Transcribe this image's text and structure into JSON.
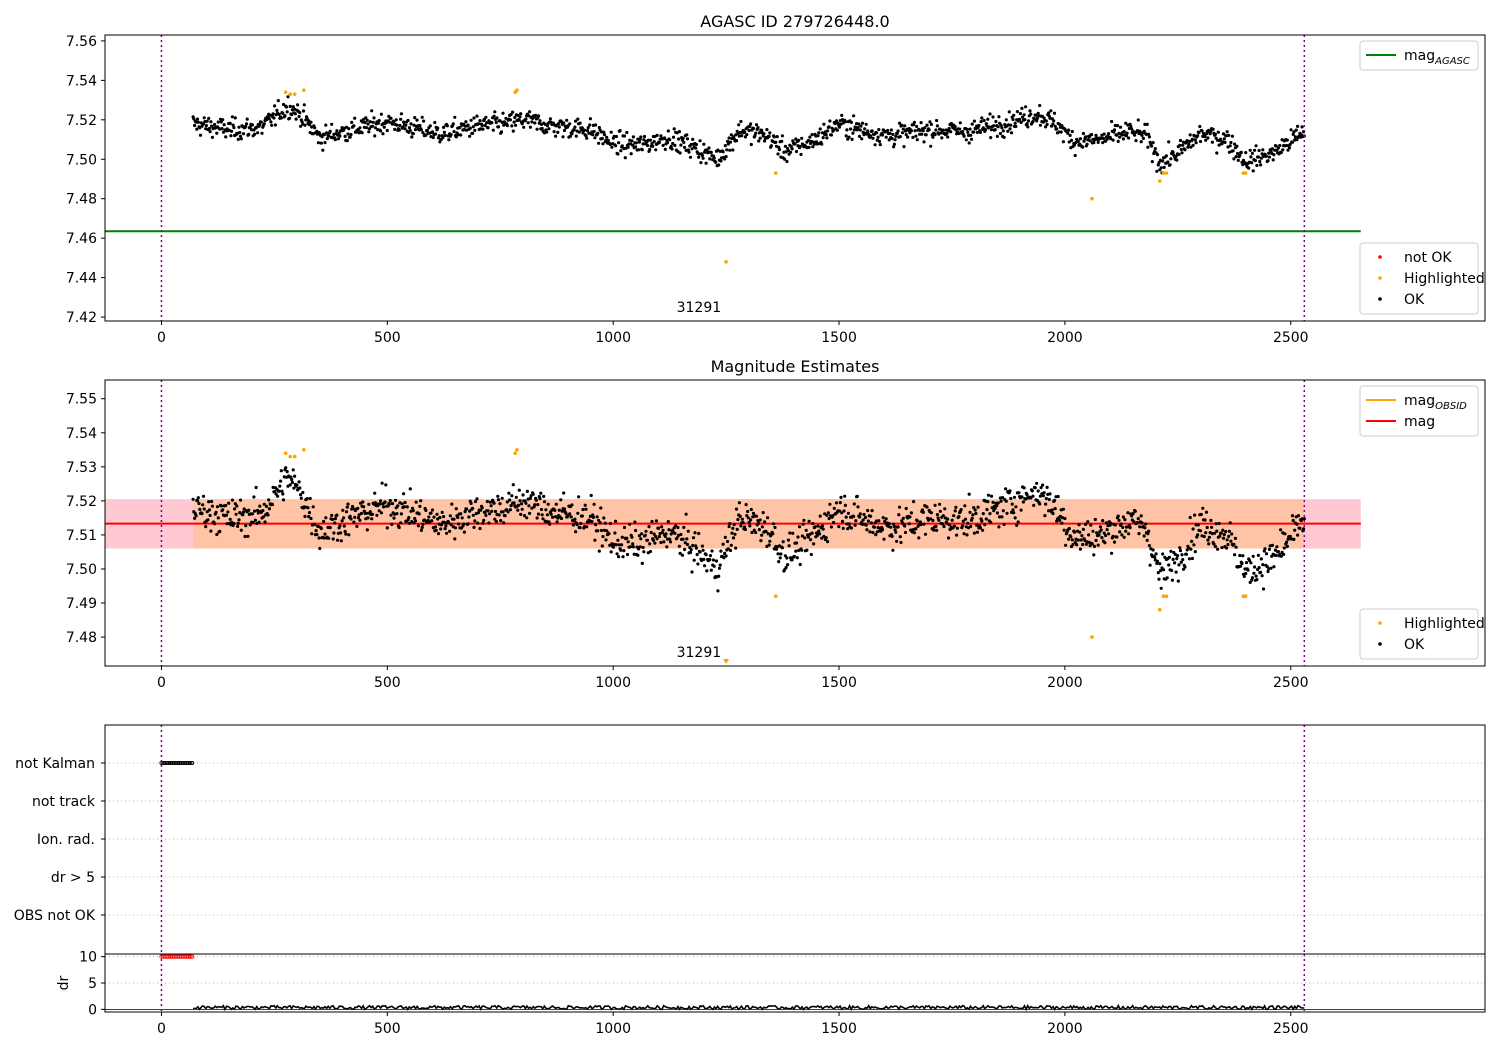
{
  "chart_data": [
    {
      "type": "scatter",
      "title": "AGASC ID 279726448.0",
      "xlabel": "",
      "ylabel": "",
      "xlim": [
        -125,
        2930
      ],
      "ylim": [
        7.418,
        7.563
      ],
      "xticks": [
        0,
        500,
        1000,
        1500,
        2000,
        2500
      ],
      "yticks": [
        7.42,
        7.44,
        7.46,
        7.48,
        7.5,
        7.52,
        7.54,
        7.56
      ],
      "ytick_format": 2,
      "vlines": [
        0,
        2530
      ],
      "obsid_label": {
        "text": "31291",
        "x": 1265
      },
      "hlines": [
        {
          "name": "mag_AGASC",
          "y": 7.4635,
          "x0": -125,
          "x1": 2655,
          "color": "#008000"
        }
      ],
      "legends": [
        {
          "position": "top-right",
          "entries": [
            {
              "label": "mag",
              "sub": "AGASC",
              "kind": "line",
              "color": "#008000"
            }
          ]
        },
        {
          "position": "lower-right",
          "entries": [
            {
              "label": "not OK",
              "kind": "dot",
              "color": "#ff0000"
            },
            {
              "label": "Highlighted",
              "kind": "dot",
              "color": "#ffa500"
            },
            {
              "label": "OK",
              "kind": "dot",
              "color": "#000000"
            }
          ]
        }
      ],
      "series": [
        {
          "name": "OK",
          "color": "#000000",
          "kind": "trend",
          "x_range": [
            70,
            2530
          ],
          "count": 1500,
          "trend": [
            [
              70,
              7.518
            ],
            [
              150,
              7.515
            ],
            [
              220,
              7.516
            ],
            [
              280,
              7.527
            ],
            [
              310,
              7.522
            ],
            [
              350,
              7.511
            ],
            [
              420,
              7.515
            ],
            [
              500,
              7.519
            ],
            [
              560,
              7.516
            ],
            [
              620,
              7.513
            ],
            [
              700,
              7.517
            ],
            [
              760,
              7.518
            ],
            [
              800,
              7.52
            ],
            [
              860,
              7.517
            ],
            [
              950,
              7.515
            ],
            [
              1000,
              7.508
            ],
            [
              1060,
              7.507
            ],
            [
              1120,
              7.511
            ],
            [
              1180,
              7.506
            ],
            [
              1230,
              7.5
            ],
            [
              1280,
              7.515
            ],
            [
              1340,
              7.512
            ],
            [
              1380,
              7.504
            ],
            [
              1440,
              7.509
            ],
            [
              1500,
              7.518
            ],
            [
              1560,
              7.514
            ],
            [
              1620,
              7.512
            ],
            [
              1700,
              7.515
            ],
            [
              1780,
              7.514
            ],
            [
              1860,
              7.518
            ],
            [
              1940,
              7.523
            ],
            [
              1980,
              7.518
            ],
            [
              2020,
              7.509
            ],
            [
              2080,
              7.51
            ],
            [
              2140,
              7.514
            ],
            [
              2180,
              7.512
            ],
            [
              2210,
              7.498
            ],
            [
              2250,
              7.503
            ],
            [
              2300,
              7.513
            ],
            [
              2360,
              7.51
            ],
            [
              2400,
              7.499
            ],
            [
              2460,
              7.503
            ],
            [
              2530,
              7.514
            ]
          ],
          "noise": 0.0045
        },
        {
          "name": "Highlighted",
          "color": "#ffa500",
          "kind": "points",
          "x": [
            275,
            285,
            295,
            315,
            783,
            787,
            1250,
            1360,
            2060,
            2210,
            2218,
            2225,
            2395,
            2400
          ],
          "y": [
            7.534,
            7.533,
            7.533,
            7.535,
            7.534,
            7.535,
            7.448,
            7.493,
            7.48,
            7.489,
            7.493,
            7.493,
            7.493,
            7.493
          ]
        }
      ]
    },
    {
      "type": "scatter",
      "title": "Magnitude Estimates",
      "xlabel": "",
      "ylabel": "",
      "xlim": [
        -125,
        2930
      ],
      "ylim": [
        7.4715,
        7.5555
      ],
      "xticks": [
        0,
        500,
        1000,
        1500,
        2000,
        2500
      ],
      "yticks": [
        7.48,
        7.49,
        7.5,
        7.51,
        7.52,
        7.53,
        7.54,
        7.55
      ],
      "ytick_format": 2,
      "vlines": [
        0,
        2530
      ],
      "obsid_label": {
        "text": "31291",
        "x": 1265
      },
      "marker": {
        "shape": "triangle",
        "x": 1250,
        "color": "#ffa500"
      },
      "bands": [
        {
          "y0": 7.506,
          "y1": 7.5205,
          "x0": -125,
          "x1": 2655,
          "fill": "#ffc0cb"
        },
        {
          "y0": 7.506,
          "y1": 7.5205,
          "x0": 70,
          "x1": 2530,
          "fill": "#ffc39d"
        }
      ],
      "hlines": [
        {
          "name": "mag",
          "y": 7.5133,
          "x0": -125,
          "x1": 2655,
          "color": "#ff0000"
        }
      ],
      "legends": [
        {
          "position": "top-right",
          "entries": [
            {
              "label": "mag",
              "sub": "OBSID",
              "kind": "line",
              "color": "#ffa500"
            },
            {
              "label": "mag",
              "kind": "line",
              "color": "#ff0000"
            }
          ]
        },
        {
          "position": "lower-right",
          "entries": [
            {
              "label": "Highlighted",
              "kind": "dot",
              "color": "#ffa500"
            },
            {
              "label": "OK",
              "kind": "dot",
              "color": "#000000"
            }
          ]
        }
      ],
      "series": [
        {
          "name": "OK",
          "color": "#000000",
          "kind": "trend",
          "x_range": [
            70,
            2530
          ],
          "count": 1500,
          "trend": [
            [
              70,
              7.518
            ],
            [
              150,
              7.515
            ],
            [
              220,
              7.516
            ],
            [
              280,
              7.527
            ],
            [
              310,
              7.522
            ],
            [
              350,
              7.511
            ],
            [
              420,
              7.515
            ],
            [
              500,
              7.519
            ],
            [
              560,
              7.516
            ],
            [
              620,
              7.513
            ],
            [
              700,
              7.517
            ],
            [
              760,
              7.518
            ],
            [
              800,
              7.52
            ],
            [
              860,
              7.517
            ],
            [
              950,
              7.515
            ],
            [
              1000,
              7.508
            ],
            [
              1060,
              7.507
            ],
            [
              1120,
              7.511
            ],
            [
              1180,
              7.506
            ],
            [
              1230,
              7.5
            ],
            [
              1280,
              7.515
            ],
            [
              1340,
              7.512
            ],
            [
              1380,
              7.504
            ],
            [
              1440,
              7.509
            ],
            [
              1500,
              7.518
            ],
            [
              1560,
              7.514
            ],
            [
              1620,
              7.512
            ],
            [
              1700,
              7.515
            ],
            [
              1780,
              7.514
            ],
            [
              1860,
              7.518
            ],
            [
              1940,
              7.523
            ],
            [
              1980,
              7.518
            ],
            [
              2020,
              7.509
            ],
            [
              2080,
              7.51
            ],
            [
              2140,
              7.514
            ],
            [
              2180,
              7.512
            ],
            [
              2210,
              7.498
            ],
            [
              2250,
              7.503
            ],
            [
              2300,
              7.513
            ],
            [
              2360,
              7.51
            ],
            [
              2400,
              7.499
            ],
            [
              2460,
              7.503
            ],
            [
              2530,
              7.514
            ]
          ],
          "noise": 0.0045
        },
        {
          "name": "Highlighted",
          "color": "#ffa500",
          "kind": "points",
          "x": [
            275,
            285,
            295,
            315,
            783,
            787,
            1360,
            2060,
            2210,
            2218,
            2225,
            2395,
            2400
          ],
          "y": [
            7.534,
            7.533,
            7.533,
            7.535,
            7.534,
            7.535,
            7.492,
            7.48,
            7.488,
            7.492,
            7.492,
            7.492,
            7.492
          ]
        }
      ]
    },
    {
      "type": "scatter",
      "title": "",
      "xlim": [
        -125,
        2930
      ],
      "categories": [
        "not Kalman",
        "not track",
        "Ion. rad.",
        "dr > 5",
        "OBS not OK"
      ],
      "vlines": [
        0,
        2530
      ],
      "series": [
        {
          "name": "not Kalman",
          "color": "#000000",
          "x_range": [
            0,
            68
          ],
          "count": 18
        }
      ]
    },
    {
      "type": "line",
      "title": "",
      "xlabel": "",
      "ylabel": "dr",
      "xlim": [
        -125,
        2930
      ],
      "ylim": [
        -0.5,
        10.5
      ],
      "xticks": [
        0,
        500,
        1000,
        1500,
        2000,
        2500
      ],
      "yticks": [
        0,
        5,
        10
      ],
      "ytick_format": 0,
      "vlines": [
        0,
        2530
      ],
      "series": [
        {
          "name": "",
          "color": "#ff0000",
          "kind": "flat",
          "x_range": [
            0,
            68
          ],
          "value": 10,
          "count": 18
        },
        {
          "name": "",
          "color": "#000000",
          "kind": "noise",
          "x_range": [
            70,
            2530
          ],
          "base": 0.35,
          "amp": 0.35,
          "count": 700
        }
      ]
    }
  ]
}
